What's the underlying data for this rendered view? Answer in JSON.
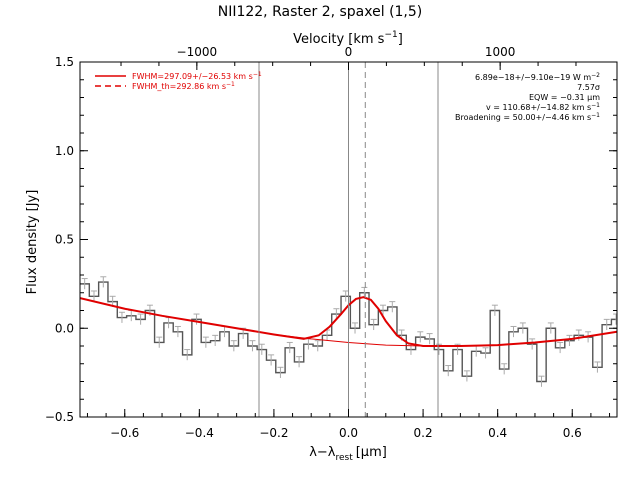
{
  "chart_data": {
    "type": "line",
    "title": "NII122, Raster 2, spaxel (1,5)",
    "xlabel": "λ−λ",
    "xlabel_sub": "rest",
    "xlabel_unit": "[μm]",
    "ylabel": "Flux density [Jy]",
    "top_axis_label": "Velocity [km s",
    "top_axis_label_sup": "−1",
    "top_axis_label_end": "]",
    "xlim": [
      -0.72,
      0.72
    ],
    "ylim": [
      -0.5,
      1.5
    ],
    "x_ticks": [
      -0.6,
      -0.4,
      -0.2,
      0.0,
      0.2,
      0.4,
      0.6
    ],
    "x_tick_labels": [
      "−0.6",
      "−0.4",
      "−0.2",
      "0.0",
      "0.2",
      "0.4",
      "0.6"
    ],
    "y_ticks": [
      -0.5,
      0.0,
      0.5,
      1.0,
      1.5
    ],
    "y_tick_labels": [
      "−0.5",
      "0.0",
      "0.5",
      "1.0",
      "1.5"
    ],
    "top_ticks_velocity": [
      -1000,
      0,
      1000
    ],
    "top_tick_labels": [
      "−1000",
      "0",
      "1000"
    ],
    "velocity_per_micron": 2459,
    "vertical_lines": [
      -0.24,
      0.0,
      0.24
    ],
    "vertical_dashed_line": 0.045,
    "legend": [
      {
        "label": "FWHM=297.09+/−26.53 km s",
        "sup": "−1",
        "style": "solid",
        "color": "#e00000"
      },
      {
        "label": "FWHM_th=292.86 km s",
        "sup": "−1",
        "style": "dashed",
        "color": "#e00000"
      }
    ],
    "annotations": [
      {
        "text": "6.89e−18+/−9.10e−19 W m",
        "sup": "−2"
      },
      {
        "text": "7.57σ",
        "sup": ""
      },
      {
        "text": "EQW = −0.31 μm",
        "sup": ""
      },
      {
        "text": "v = 110.68+/−14.82 km s",
        "sup": "−1"
      },
      {
        "text": "Broadening = 50.00+/−4.46 km s",
        "sup": "−1"
      }
    ],
    "series": [
      {
        "name": "spectrum",
        "style": "steps",
        "color": "#555555",
        "x": [
          -0.72,
          -0.695,
          -0.67,
          -0.645,
          -0.62,
          -0.595,
          -0.57,
          -0.545,
          -0.52,
          -0.495,
          -0.47,
          -0.445,
          -0.42,
          -0.395,
          -0.37,
          -0.345,
          -0.32,
          -0.295,
          -0.27,
          -0.245,
          -0.22,
          -0.195,
          -0.17,
          -0.145,
          -0.12,
          -0.095,
          -0.07,
          -0.045,
          -0.02,
          0.005,
          0.03,
          0.055,
          0.08,
          0.105,
          0.13,
          0.155,
          0.18,
          0.205,
          0.23,
          0.255,
          0.28,
          0.305,
          0.33,
          0.355,
          0.38,
          0.405,
          0.43,
          0.455,
          0.48,
          0.505,
          0.53,
          0.555,
          0.58,
          0.605,
          0.63,
          0.655,
          0.68,
          0.705
        ],
        "y": [
          0.25,
          0.18,
          0.26,
          0.15,
          0.06,
          0.07,
          0.05,
          0.1,
          -0.08,
          0.03,
          -0.02,
          -0.15,
          0.05,
          -0.08,
          -0.07,
          -0.02,
          -0.1,
          -0.03,
          -0.1,
          -0.12,
          -0.18,
          -0.25,
          -0.11,
          -0.19,
          -0.09,
          -0.1,
          -0.04,
          0.08,
          0.18,
          0.0,
          0.2,
          0.02,
          0.1,
          0.12,
          -0.04,
          -0.12,
          -0.05,
          -0.06,
          -0.12,
          -0.24,
          -0.12,
          -0.27,
          -0.13,
          -0.14,
          0.1,
          -0.23,
          -0.02,
          0.0,
          -0.09,
          -0.3,
          0.0,
          -0.11,
          -0.07,
          -0.04,
          -0.05,
          -0.22,
          0.02,
          0.05
        ],
        "err": 0.03
      },
      {
        "name": "baseline",
        "style": "line",
        "color": "#e00000",
        "x": [
          -0.72,
          -0.6,
          -0.5,
          -0.4,
          -0.3,
          -0.2,
          -0.1,
          0.0,
          0.1,
          0.2,
          0.3,
          0.4,
          0.5,
          0.6,
          0.72
        ],
        "y": [
          0.17,
          0.11,
          0.07,
          0.035,
          0.0,
          -0.035,
          -0.06,
          -0.08,
          -0.095,
          -0.1,
          -0.1,
          -0.095,
          -0.08,
          -0.06,
          -0.02
        ]
      },
      {
        "name": "fit",
        "style": "line",
        "color": "#e00000",
        "x": [
          -0.72,
          -0.6,
          -0.5,
          -0.4,
          -0.3,
          -0.2,
          -0.12,
          -0.08,
          -0.05,
          -0.02,
          0.0,
          0.02,
          0.04,
          0.06,
          0.08,
          0.1,
          0.13,
          0.16,
          0.2,
          0.3,
          0.4,
          0.5,
          0.6,
          0.72
        ],
        "y": [
          0.17,
          0.11,
          0.07,
          0.035,
          0.0,
          -0.035,
          -0.06,
          -0.04,
          0.01,
          0.08,
          0.13,
          0.165,
          0.175,
          0.16,
          0.11,
          0.04,
          -0.04,
          -0.085,
          -0.1,
          -0.1,
          -0.095,
          -0.08,
          -0.06,
          -0.02
        ]
      }
    ]
  }
}
